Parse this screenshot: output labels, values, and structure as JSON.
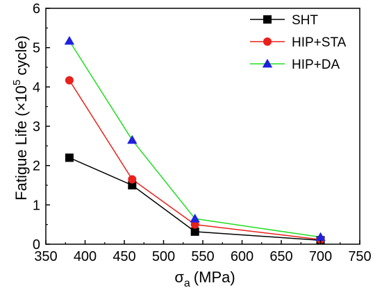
{
  "chart_data": {
    "type": "line",
    "title": "",
    "xlabel": {
      "symbol": "σ",
      "subscript": "a",
      "unit": "(MPa)"
    },
    "ylabel": {
      "prefix": "Fatigue Life (×10",
      "superscript": "5",
      "suffix": " cycle)"
    },
    "xlim": [
      350,
      750
    ],
    "ylim": [
      0,
      6
    ],
    "xticks": [
      350,
      400,
      450,
      500,
      550,
      600,
      650,
      700,
      750
    ],
    "yticks": [
      0,
      1,
      2,
      3,
      4,
      5,
      6
    ],
    "grid": false,
    "legend_position": "top-right",
    "x": [
      380,
      460,
      540,
      700
    ],
    "series": [
      {
        "name": "SHT",
        "color": "#000000",
        "marker": "square",
        "values": [
          2.2,
          1.5,
          0.32,
          0.1
        ]
      },
      {
        "name": "HIP+STA",
        "color": "#e8211d",
        "marker": "circle",
        "values": [
          4.17,
          1.65,
          0.5,
          0.12
        ]
      },
      {
        "name": "HIP+DA",
        "color": "#2020e0",
        "line_color": "#22dd22",
        "marker": "triangle",
        "values": [
          5.17,
          2.65,
          0.65,
          0.18
        ]
      }
    ]
  }
}
